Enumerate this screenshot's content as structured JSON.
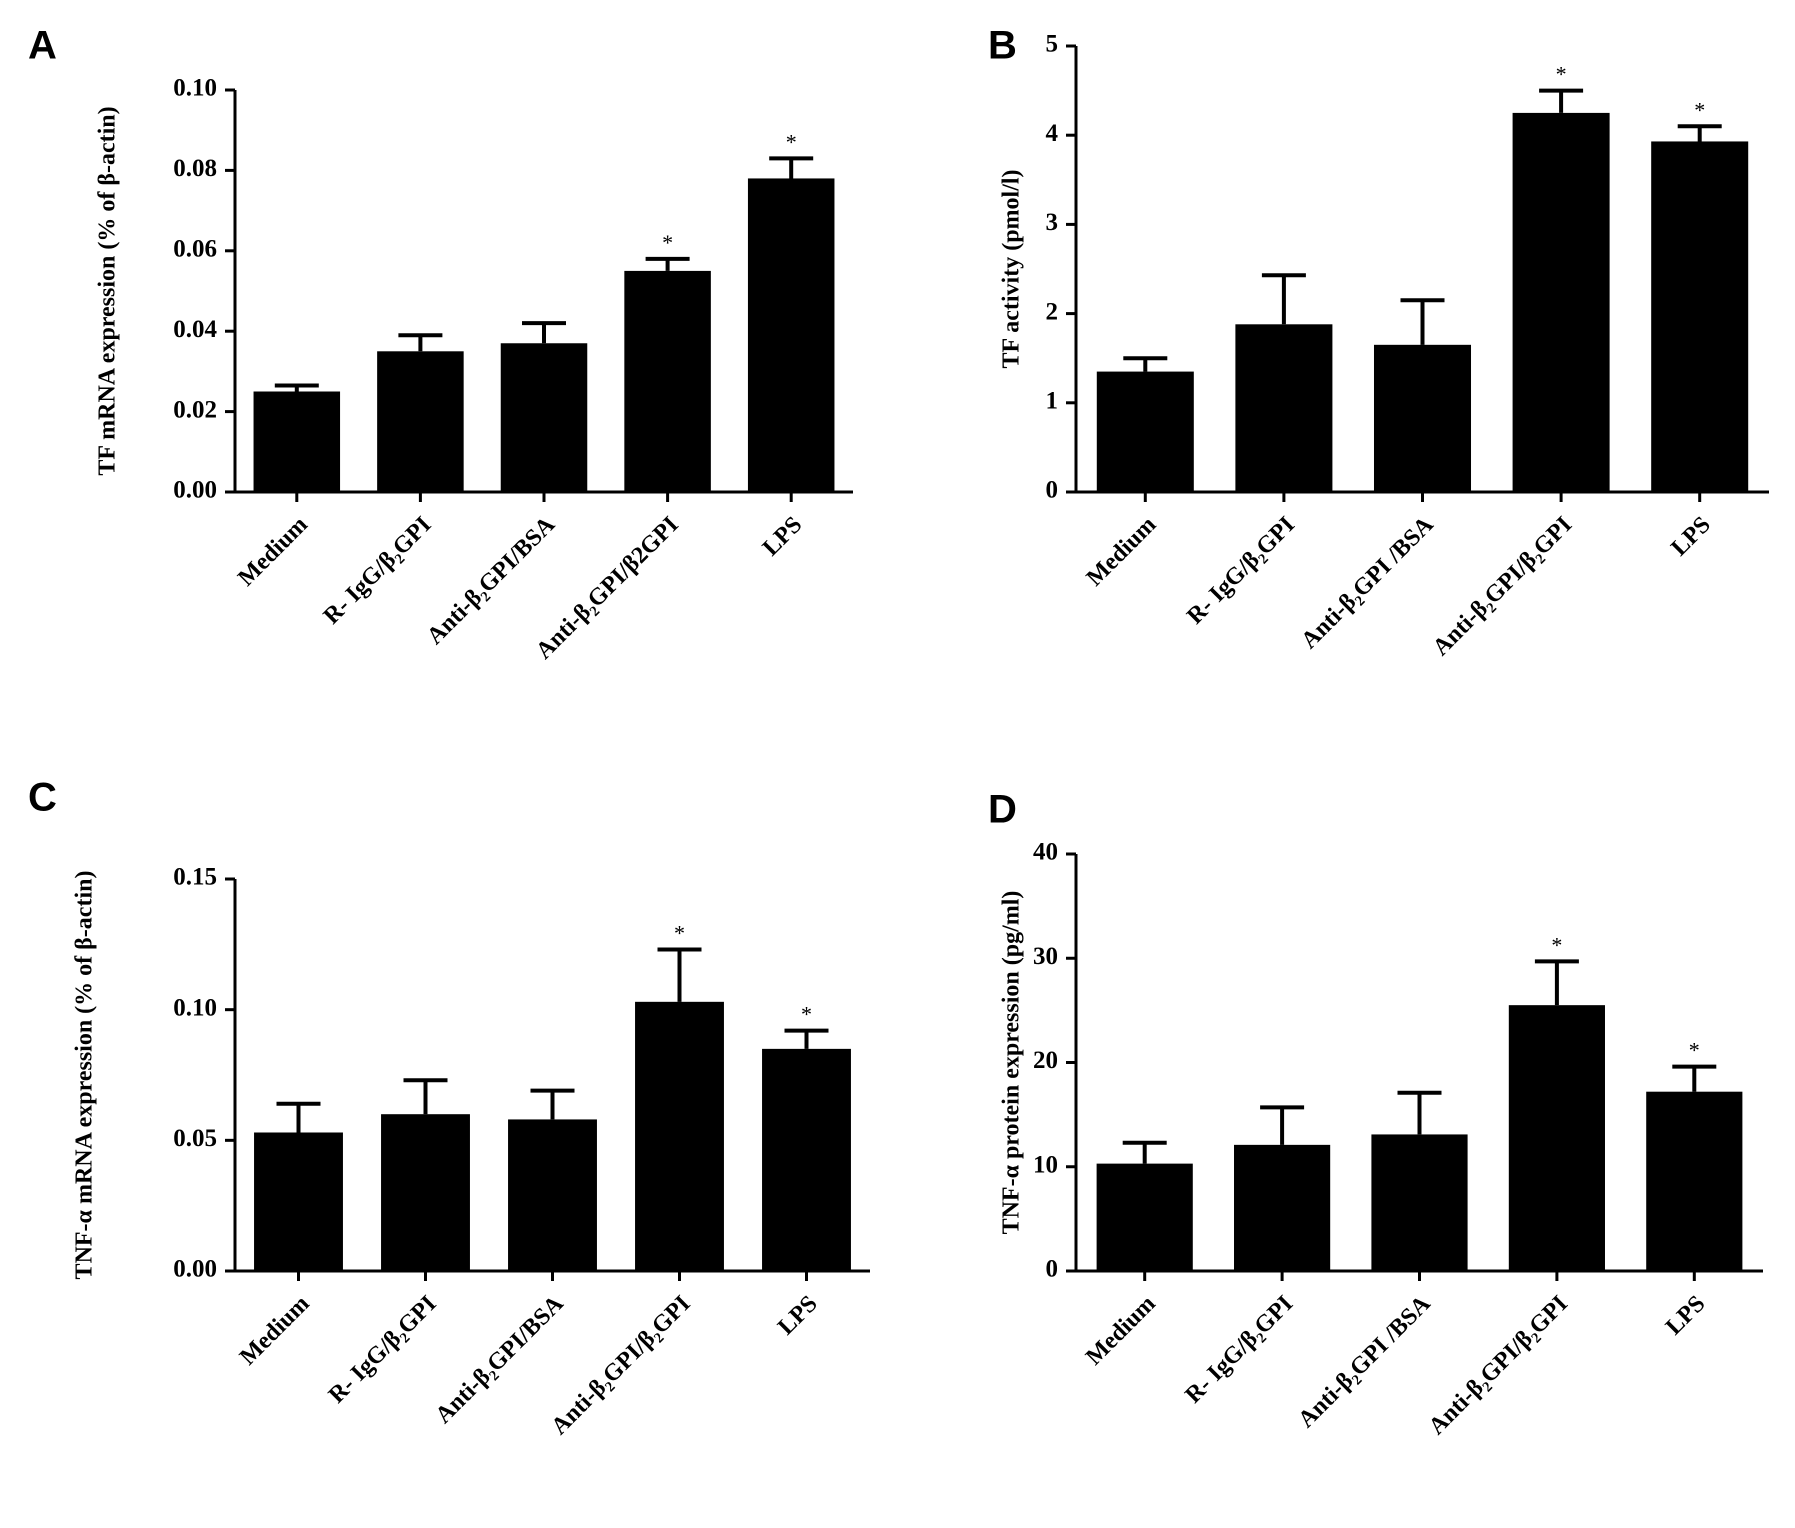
{
  "chart_data": [
    {
      "type": "bar",
      "panel": "A",
      "y_label": "TF mRNA expression (% of  β-actin)",
      "categories": [
        "Medium",
        "R- IgG/β₂GPI",
        "Anti-β₂GPI/BSA",
        "Anti-β₂GPI/β2GPI",
        "LPS"
      ],
      "values": [
        0.025,
        0.035,
        0.037,
        0.055,
        0.078
      ],
      "errors": [
        0.0015,
        0.004,
        0.005,
        0.003,
        0.005
      ],
      "annotations": [
        null,
        null,
        null,
        "*",
        "*"
      ],
      "color": "#000000",
      "ylim": [
        0,
        0.1
      ],
      "yticks": [
        {
          "value": 0,
          "label": "0.00"
        },
        0.02,
        0.04,
        0.06,
        0.08,
        {
          "value": 0.1,
          "label": "0.10"
        }
      ]
    },
    {
      "type": "bar",
      "panel": "B",
      "y_label": "TF activity (pmol/l)",
      "categories": [
        "Medium",
        "R- IgG/β₂GPI",
        "Anti-β₂GPI /BSA",
        "Anti-β₂GPI/β₂GPI",
        "LPS"
      ],
      "values": [
        1.35,
        1.88,
        1.65,
        4.25,
        3.93
      ],
      "errors": [
        0.15,
        0.55,
        0.5,
        0.25,
        0.17
      ],
      "annotations": [
        null,
        null,
        null,
        "*",
        "*"
      ],
      "color": "#000000",
      "ylim": [
        0,
        5
      ],
      "yticks": [
        0,
        1,
        2,
        3,
        4,
        5
      ]
    },
    {
      "type": "bar",
      "panel": "C",
      "y_label": "TNF-α mRNA expression (% of  β-actin)",
      "categories": [
        "Medium",
        "R- IgG/β₂GPI",
        "Anti-β₂GPI/BSA",
        "Anti-β₂GPI/β₂GPI",
        "LPS"
      ],
      "values": [
        0.053,
        0.06,
        0.058,
        0.103,
        0.085
      ],
      "errors": [
        0.011,
        0.013,
        0.011,
        0.02,
        0.007
      ],
      "annotations": [
        null,
        null,
        null,
        "*",
        "*"
      ],
      "color": "#000000",
      "ylim": [
        0,
        0.15
      ],
      "yticks": [
        {
          "value": 0,
          "label": "0.00"
        },
        0.05,
        {
          "value": 0.1,
          "label": "0.10"
        },
        0.15
      ]
    },
    {
      "type": "bar",
      "panel": "D",
      "y_label": "TNF-α protein expression (pg/ml)",
      "categories": [
        "Medium",
        "R- IgG/β₂GPI",
        "Anti-β₂GPI /BSA",
        "Anti-β₂GPI/β₂GPI",
        "LPS"
      ],
      "values": [
        10.3,
        12.1,
        13.1,
        25.5,
        17.2
      ],
      "errors": [
        2,
        3.6,
        4,
        4.2,
        2.4
      ],
      "annotations": [
        null,
        null,
        null,
        "*",
        "*"
      ],
      "color": "#000000",
      "ylim": [
        0,
        40
      ],
      "yticks": [
        0,
        10,
        20,
        30,
        40
      ]
    }
  ]
}
